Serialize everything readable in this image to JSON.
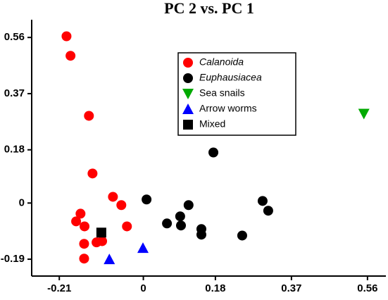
{
  "chart_data": {
    "type": "scatter",
    "title": "PC 2 vs. PC 1",
    "xlim": [
      -0.279,
      0.606
    ],
    "ylim": [
      -0.247,
      0.62
    ],
    "xticks": [
      -0.21,
      0,
      0.18,
      0.37,
      0.56
    ],
    "yticks": [
      -0.19,
      0,
      0.18,
      0.37,
      0.56
    ],
    "grid": false,
    "legend": "upper center",
    "series": [
      {
        "name": "Calanoida",
        "color": "#ff0000",
        "marker": "circle",
        "italic": true,
        "x": [
          -0.192,
          -0.182,
          -0.136,
          -0.127,
          -0.076,
          -0.055,
          -0.157,
          -0.168,
          -0.147,
          -0.041,
          -0.117,
          -0.103,
          -0.148,
          -0.148
        ],
        "y": [
          0.564,
          0.498,
          0.295,
          0.1,
          0.021,
          -0.007,
          -0.036,
          -0.062,
          -0.079,
          -0.079,
          -0.133,
          -0.129,
          -0.138,
          -0.188
        ]
      },
      {
        "name": "Euphausiacea",
        "color": "#000000",
        "marker": "circle",
        "italic": true,
        "x": [
          0.175,
          0.008,
          0.113,
          0.298,
          0.312,
          0.059,
          0.092,
          0.094,
          0.145,
          0.145,
          0.247
        ],
        "y": [
          0.171,
          0.012,
          -0.007,
          0.007,
          -0.026,
          -0.069,
          -0.045,
          -0.076,
          -0.088,
          -0.107,
          -0.11
        ]
      },
      {
        "name": "Sea snails",
        "color": "#00aa00",
        "marker": "triangle-down",
        "italic": false,
        "x": [
          0.551
        ],
        "y": [
          0.302
        ]
      },
      {
        "name": "Arrow worms",
        "color": "#0000ff",
        "marker": "triangle",
        "italic": false,
        "x": [
          -0.085,
          -0.001
        ],
        "y": [
          -0.19,
          -0.152
        ]
      },
      {
        "name": "Mixed",
        "color": "#000000",
        "marker": "square",
        "italic": false,
        "x": [
          -0.105
        ],
        "y": [
          -0.1
        ]
      }
    ]
  }
}
